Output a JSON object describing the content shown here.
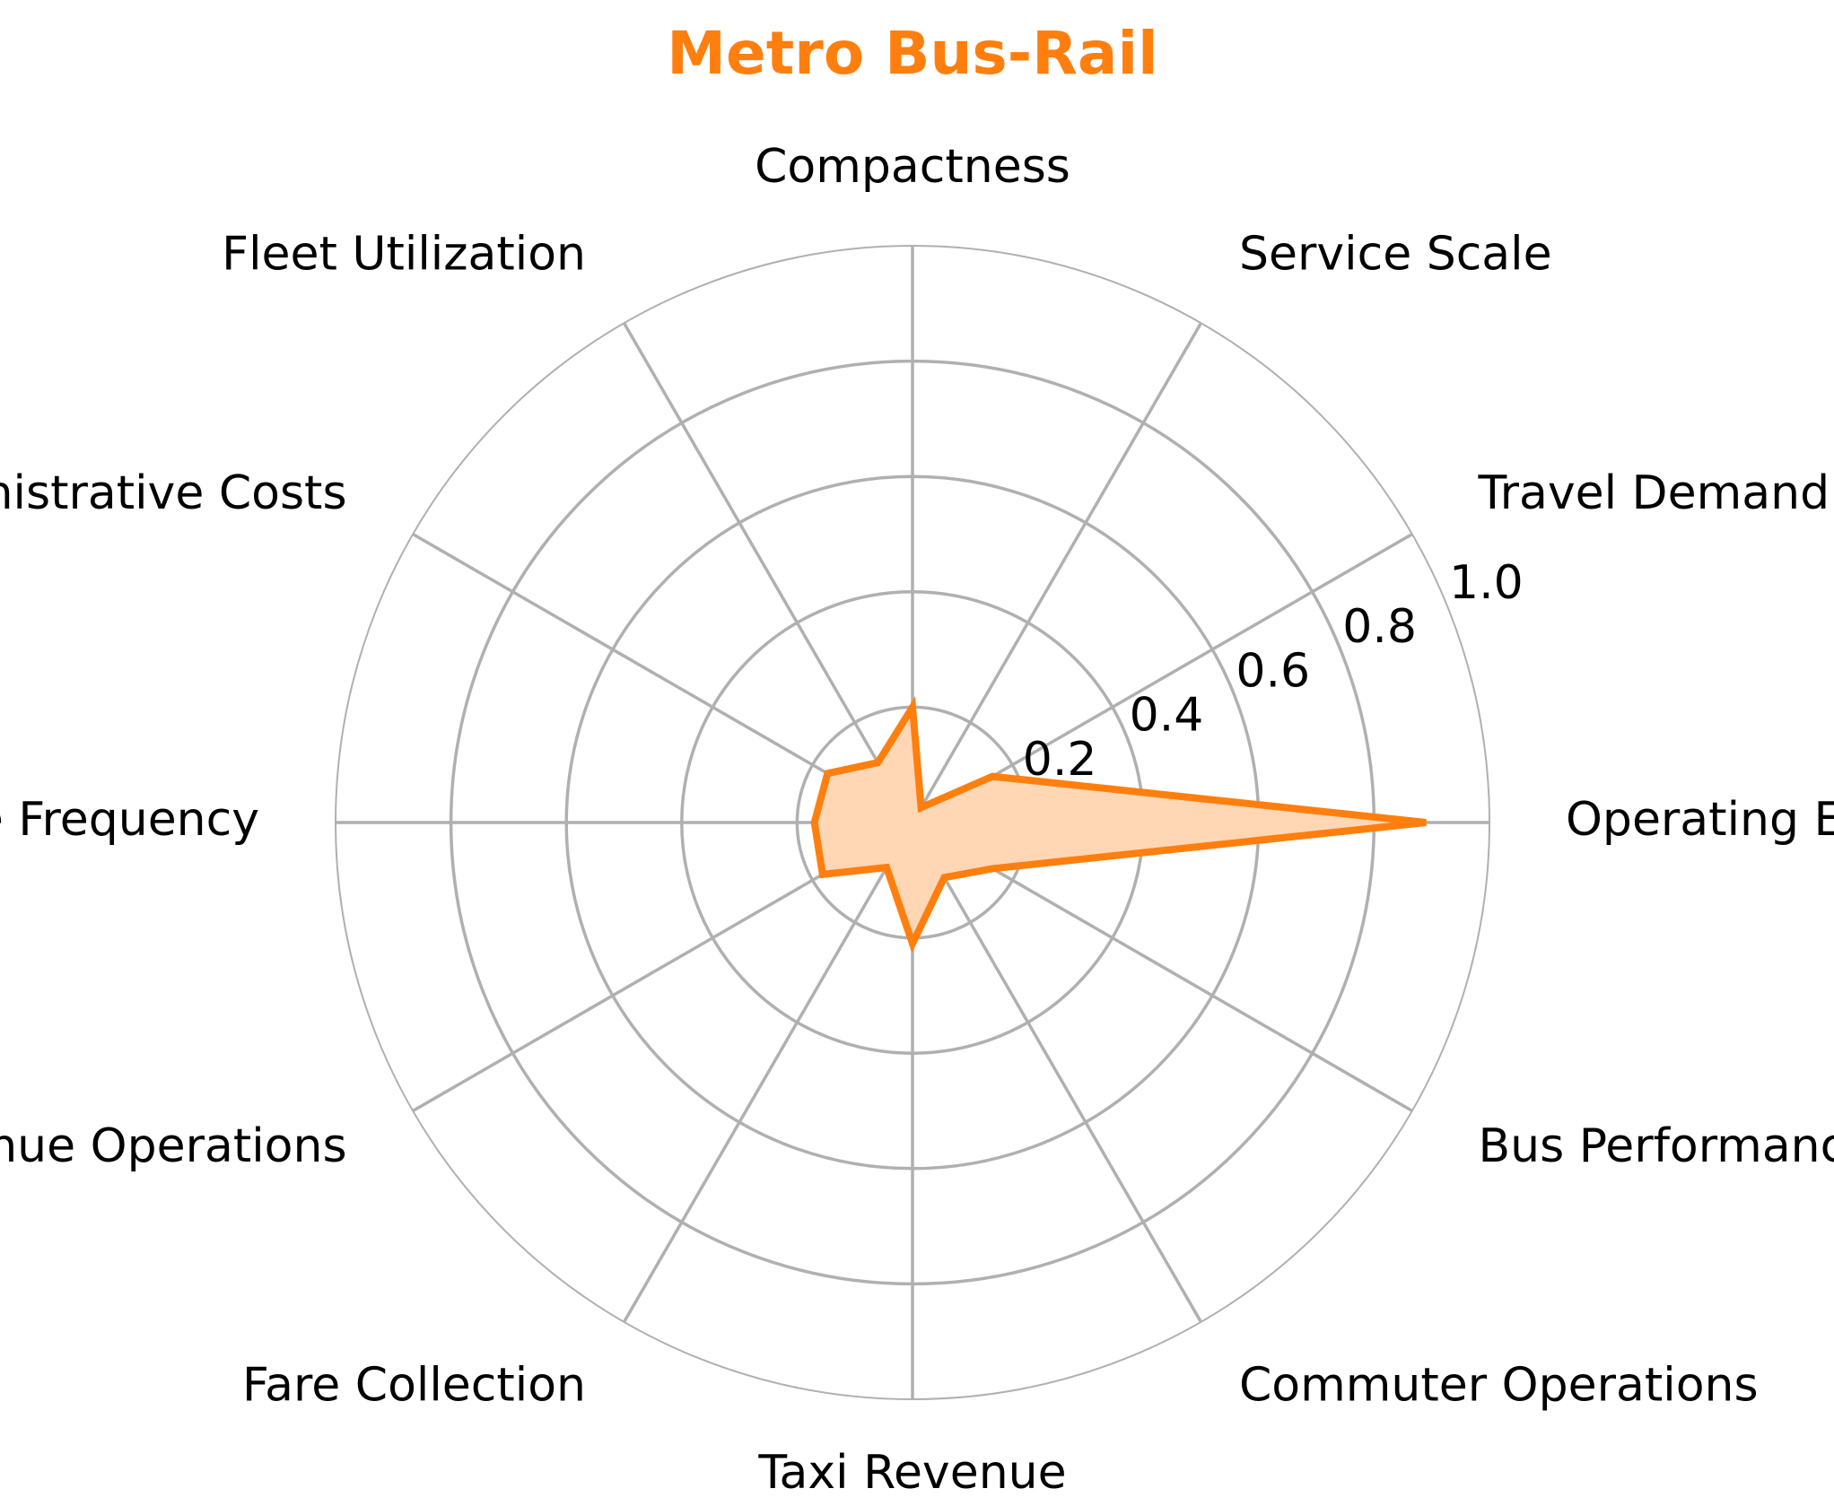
{
  "chart_data": {
    "type": "radar",
    "title": "Metro Bus-Rail",
    "title_color": "#ff7f0e",
    "series_color": "#ff7f0e",
    "fill_color": "#ffd7b5",
    "grid_color": "#b0b0b0",
    "categories": [
      "Operating Expenses",
      "Travel Demand",
      "Service Scale",
      "Compactness",
      "Fleet Utilization",
      "Administrative Costs",
      "Service Frequency",
      "Revenue Operations",
      "Fare Collection",
      "Taxi Revenue",
      "Commuter Operations",
      "Bus Performance"
    ],
    "values": [
      0.89,
      0.16,
      0.03,
      0.2,
      0.12,
      0.17,
      0.17,
      0.18,
      0.09,
      0.21,
      0.11,
      0.16
    ],
    "rlim": [
      0,
      1.0
    ],
    "rticks": [
      "0.2",
      "0.4",
      "0.6",
      "0.8",
      "1.0"
    ],
    "grid": true,
    "legend": false
  }
}
